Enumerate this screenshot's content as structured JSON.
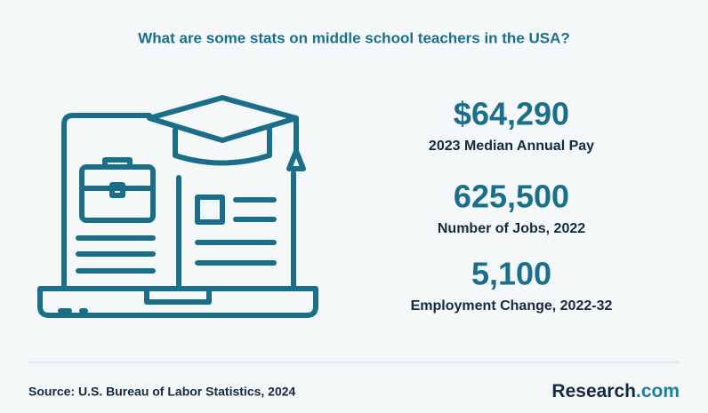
{
  "header": {
    "title": "What are some stats on middle school teachers in the USA?"
  },
  "stats": [
    {
      "value": "$64,290",
      "label": "2023 Median Annual Pay"
    },
    {
      "value": "625,500",
      "label": "Number of Jobs, 2022"
    },
    {
      "value": "5,100",
      "label": "Employment Change, 2022-32"
    }
  ],
  "footer": {
    "source": "Source: U.S. Bureau of Labor Statistics, 2024",
    "brand": {
      "name": "Research",
      "suffix": ".com"
    }
  }
}
